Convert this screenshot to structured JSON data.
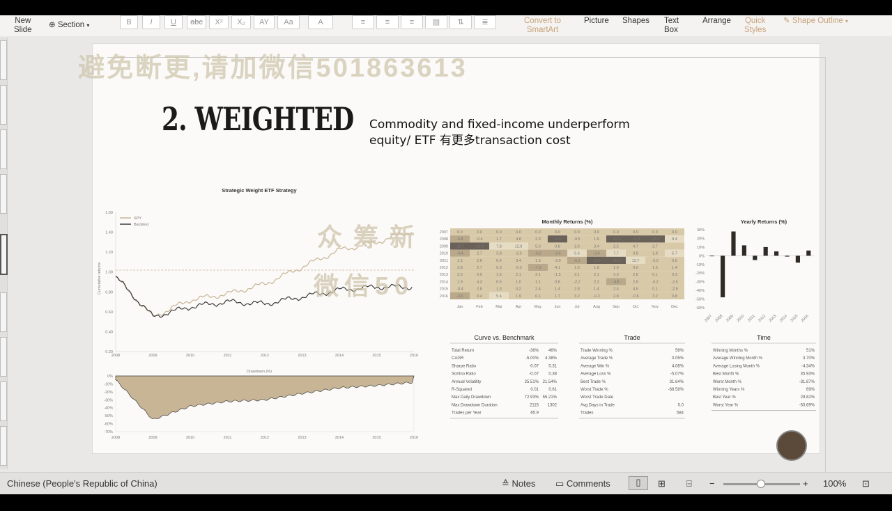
{
  "ribbon": {
    "new_slide": "New\nSlide",
    "section": "Section",
    "format_buttons": [
      "B",
      "I",
      "U",
      "abc",
      "X²",
      "X₂",
      "AY",
      "Aa",
      "A"
    ],
    "convert": "Convert to\nSmartArt",
    "picture": "Picture",
    "shapes": "Shapes",
    "text_box": "Text\nBox",
    "arrange": "Arrange",
    "quick_styles": "Quick\nStyles",
    "shape_outline": "Shape Outline"
  },
  "slide": {
    "watermark_top": "避免断更,请加微信501863613",
    "watermark_mid": "众筹新",
    "watermark_low": "微信50",
    "title": "2. WEIGHTED",
    "subtitle_line1": "Commodity and fixed-income underperform",
    "subtitle_line2": "equity/ ETF 有更多transaction cost"
  },
  "chart_data": [
    {
      "type": "line",
      "title": "Strategic Weight ETF Strategy",
      "ylabel": "Cumulative returns",
      "legend": [
        "SPY",
        "Backtest"
      ],
      "legend_position": "top-left",
      "x": [
        "2008",
        "2009",
        "2010",
        "2011",
        "2012",
        "2013",
        "2014",
        "2015",
        "2016"
      ],
      "y_ticks": [
        "0.20",
        "0.40",
        "0.60",
        "0.80",
        "1.00",
        "1.20",
        "1.40",
        "1.60"
      ],
      "ylim": [
        0.2,
        1.6
      ],
      "series": [
        {
          "name": "SPY",
          "values": [
            0.95,
            0.55,
            0.72,
            0.78,
            0.88,
            1.05,
            1.22,
            1.3,
            1.42
          ]
        },
        {
          "name": "Backtest",
          "values": [
            0.95,
            0.55,
            0.65,
            0.7,
            0.68,
            0.75,
            0.82,
            0.85,
            0.85
          ]
        }
      ],
      "colors": [
        "#c8b596",
        "#3c3c3c"
      ]
    },
    {
      "type": "area",
      "title": "Drawdown (%)",
      "x": [
        "2008",
        "2009",
        "2010",
        "2011",
        "2012",
        "2013",
        "2014",
        "2015",
        "2016"
      ],
      "y_ticks": [
        "0%",
        "-10%",
        "-20%",
        "-30%",
        "-40%",
        "-50%",
        "-60%",
        "-70%"
      ],
      "values": [
        -5,
        -55,
        -38,
        -32,
        -30,
        -22,
        -15,
        -12,
        -8
      ]
    },
    {
      "type": "heatmap",
      "title": "Monthly Returns (%)",
      "columns": [
        "Jan",
        "Feb",
        "Mar",
        "Apr",
        "May",
        "Jun",
        "Jul",
        "Aug",
        "Sep",
        "Oct",
        "Nov",
        "Dec"
      ],
      "rows": [
        "2007",
        "2008",
        "2009",
        "2010",
        "2011",
        "2012",
        "2013",
        "2014",
        "2015",
        "2016"
      ],
      "cells": [
        [
          "0.0",
          "0.0",
          "0.0",
          "0.0",
          "0.0",
          "0.0",
          "0.0",
          "0.0",
          "0.0",
          "0.0",
          "0.0",
          "0.0"
        ],
        [
          "-6.8",
          "-0.4",
          "1.7",
          "4.8",
          "2.3",
          "-8.9",
          "-0.5",
          "1.5",
          "-10.3",
          "-16.9",
          "-13.9",
          "8.4"
        ],
        [
          "-10.7",
          "-11.9",
          "7.8",
          "12.8",
          "5.0",
          "0.8",
          "3.6",
          "3.4",
          "2.5",
          "4.7",
          "2.7",
          ""
        ],
        [
          "-4.4",
          "2.7",
          "3.8",
          "-2.3",
          "-6.2",
          "-3.6",
          "5.6",
          "-3.4",
          "7.7",
          "3.8",
          "1.8",
          "5.7"
        ],
        [
          "1.5",
          "2.6",
          "0.4",
          "3.4",
          "1.5",
          "-3.0",
          "-6.2",
          "-8.5",
          "-11.3",
          "12.7",
          "-2.0",
          "0.5"
        ],
        [
          "3.8",
          "2.7",
          "0.3",
          "-0.3",
          "-7.3",
          "4.1",
          "1.5",
          "1.8",
          "1.6",
          "0.9",
          "1.5",
          "1.4"
        ],
        [
          "2.6",
          "0.5",
          "1.6",
          "2.1",
          "2.1",
          "-1.5",
          "3.1",
          "2.1",
          "3.3",
          "2.8",
          "0.1",
          "0.3"
        ],
        [
          "1.9",
          "4.3",
          "0.5",
          "1.0",
          "1.1",
          "0.8",
          "-2.2",
          "2.2",
          "-4.8",
          "2.8",
          "-0.2",
          "-2.5"
        ],
        [
          "-0.4",
          "2.8",
          "1.3",
          "0.2",
          "2.4",
          "1.4",
          "2.8",
          "1.4",
          "2.4",
          "4.5",
          "0.1",
          "-2.9"
        ],
        [
          "-3.6",
          "0.4",
          "5.4",
          "1.9",
          "0.1",
          "1.7",
          "3.2",
          "-0.2",
          "2.8",
          "-0.6",
          "3.2",
          "0.8"
        ]
      ]
    },
    {
      "type": "bar",
      "title": "Yearly Returns (%)",
      "categories": [
        "2007",
        "2008",
        "2009",
        "2010",
        "2011",
        "2012",
        "2013",
        "2014",
        "2015",
        "2016"
      ],
      "values": [
        0,
        -48,
        28,
        12,
        -5,
        10,
        5,
        -1,
        -8,
        6
      ],
      "y_ticks": [
        "30%",
        "20%",
        "10%",
        "0%",
        "-10%",
        "-20%",
        "-30%",
        "-40%",
        "-50%",
        "-60%"
      ],
      "ylim": [
        -60,
        30
      ]
    },
    {
      "type": "table",
      "title": "Curve vs. Benchmark",
      "rows": [
        [
          "Total Return",
          "-36%",
          "46%"
        ],
        [
          "CAGR",
          "-5.00%",
          "4.38%"
        ],
        [
          "Sharpe Ratio",
          "-0.07",
          "0.31"
        ],
        [
          "Sortino Ratio",
          "-0.07",
          "0.38"
        ],
        [
          "Annual Volatility",
          "25.51%",
          "21.54%"
        ],
        [
          "R-Squared",
          "0.01",
          "0.61"
        ],
        [
          "Max Daily Drawdown",
          "72.93%",
          "55.21%"
        ],
        [
          "Max Drawdown Duration",
          "2115",
          "1302"
        ],
        [
          "Trades per Year",
          "65.9",
          ""
        ]
      ]
    },
    {
      "type": "table",
      "title": "Trade",
      "rows": [
        [
          "Trade Winning %",
          "56%"
        ],
        [
          "Average Trade %",
          "0.05%"
        ],
        [
          "Average Win %",
          "4.08%"
        ],
        [
          "Average Loss %",
          "-5.07%"
        ],
        [
          "Best Trade %",
          "31.64%"
        ],
        [
          "Worst Trade %",
          "-68.58%"
        ],
        [
          "Worst Trade Date",
          ""
        ],
        [
          "Avg Days in Trade",
          "0.0"
        ],
        [
          "Trades",
          "584"
        ]
      ]
    },
    {
      "type": "table",
      "title": "Time",
      "rows": [
        [
          "Winning Months %",
          "51%"
        ],
        [
          "Average Winning Month %",
          "3.70%"
        ],
        [
          "Average Losing Month %",
          "-4.34%"
        ],
        [
          "Best Month %",
          "35.93%"
        ],
        [
          "Worst Month %",
          "-31.87%"
        ],
        [
          "Winning Years %",
          "69%"
        ],
        [
          "Best Year %",
          "29.82%"
        ],
        [
          "Worst Year %",
          "-50.69%"
        ]
      ]
    }
  ],
  "status": {
    "language": "Chinese (People's Republic of China)",
    "notes": "Notes",
    "comments": "Comments",
    "zoom": "100%",
    "minus": "−",
    "plus": "+"
  }
}
